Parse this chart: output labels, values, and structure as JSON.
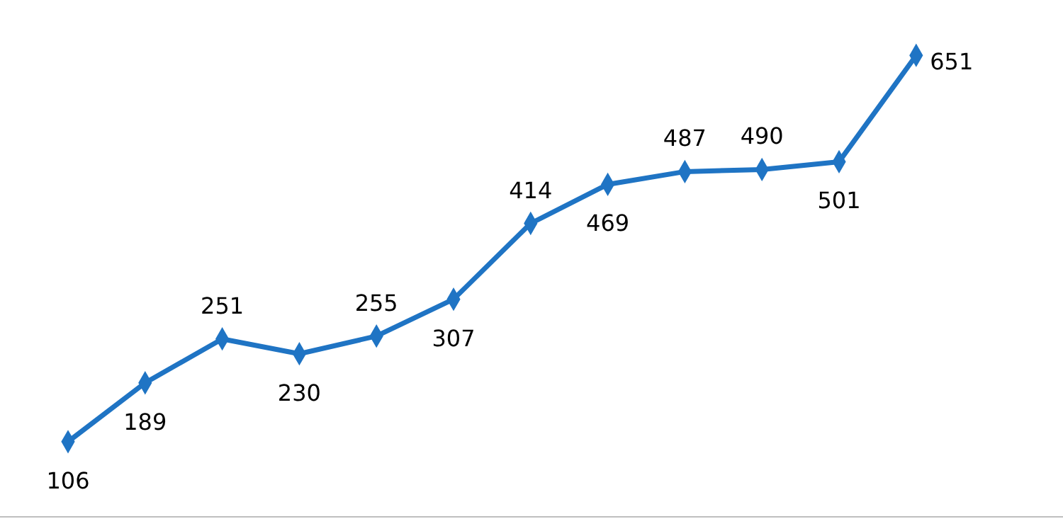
{
  "chart_data": {
    "type": "line",
    "categories": [
      null,
      null,
      null,
      null,
      null,
      null,
      null,
      null,
      null,
      null,
      null,
      null
    ],
    "series": [
      {
        "color": "#1f74c4",
        "values": [
          106,
          189,
          251,
          230,
          255,
          307,
          414,
          469,
          487,
          490,
          501,
          651
        ]
      }
    ],
    "data_labels": true,
    "marker": "diamond",
    "line_style": "solid"
  }
}
